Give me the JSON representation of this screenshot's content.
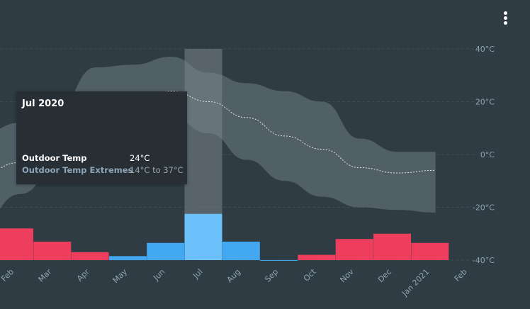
{
  "menu": {
    "icon": "vertical-dots-icon"
  },
  "tooltip": {
    "title": "Jul 2020",
    "rows": [
      {
        "label": "Outdoor Temp",
        "value": "24°C"
      },
      {
        "label": "Outdoor Temp Extremes",
        "value": "14°C to 37°C"
      }
    ]
  },
  "chart_data": {
    "type": "area",
    "x_categories": [
      "Feb",
      "Mar",
      "Apr",
      "May",
      "Jun",
      "Jul",
      "Aug",
      "Sep",
      "Oct",
      "Nov",
      "Dec",
      "Jan 2021",
      "Feb"
    ],
    "y_ticks": [
      "40°C",
      "20°C",
      "0°C",
      "-20°C",
      "-40°C"
    ],
    "ylim": [
      -40,
      40
    ],
    "grid": true,
    "series": [
      {
        "name": "Outdoor Temp",
        "style": "dashed-line",
        "color": "#e8e8e8",
        "values": [
          -7,
          -3,
          4,
          14,
          18,
          24,
          20,
          14,
          7,
          2,
          -5,
          -7,
          -6
        ]
      },
      {
        "name": "Outdoor Temp Extremes",
        "style": "range-band",
        "color": "#5d6b73",
        "low": [
          -25,
          -15,
          -5,
          6,
          11,
          14,
          8,
          -2,
          -10,
          -16,
          -20,
          -21,
          -22
        ],
        "high": [
          8,
          12,
          18,
          33,
          34,
          37,
          31,
          27,
          24,
          20,
          6,
          1,
          1
        ]
      }
    ],
    "bars": {
      "values": [
        -28,
        -33,
        -37,
        -38.5,
        -33.5,
        -22.5,
        -33,
        -40,
        -38,
        -32,
        -30,
        -33.5
      ],
      "colors": [
        "#ee3e5e",
        "#ee3e5e",
        "#ee3e5e",
        "#42a8f2",
        "#42a8f2",
        "#6cc0f9",
        "#42a8f2",
        "#42a8f2",
        "#ee3e5e",
        "#ee3e5e",
        "#ee3e5e",
        "#ee3e5e"
      ]
    },
    "highlight_index": 5,
    "highlight_color": "#7a858b"
  }
}
